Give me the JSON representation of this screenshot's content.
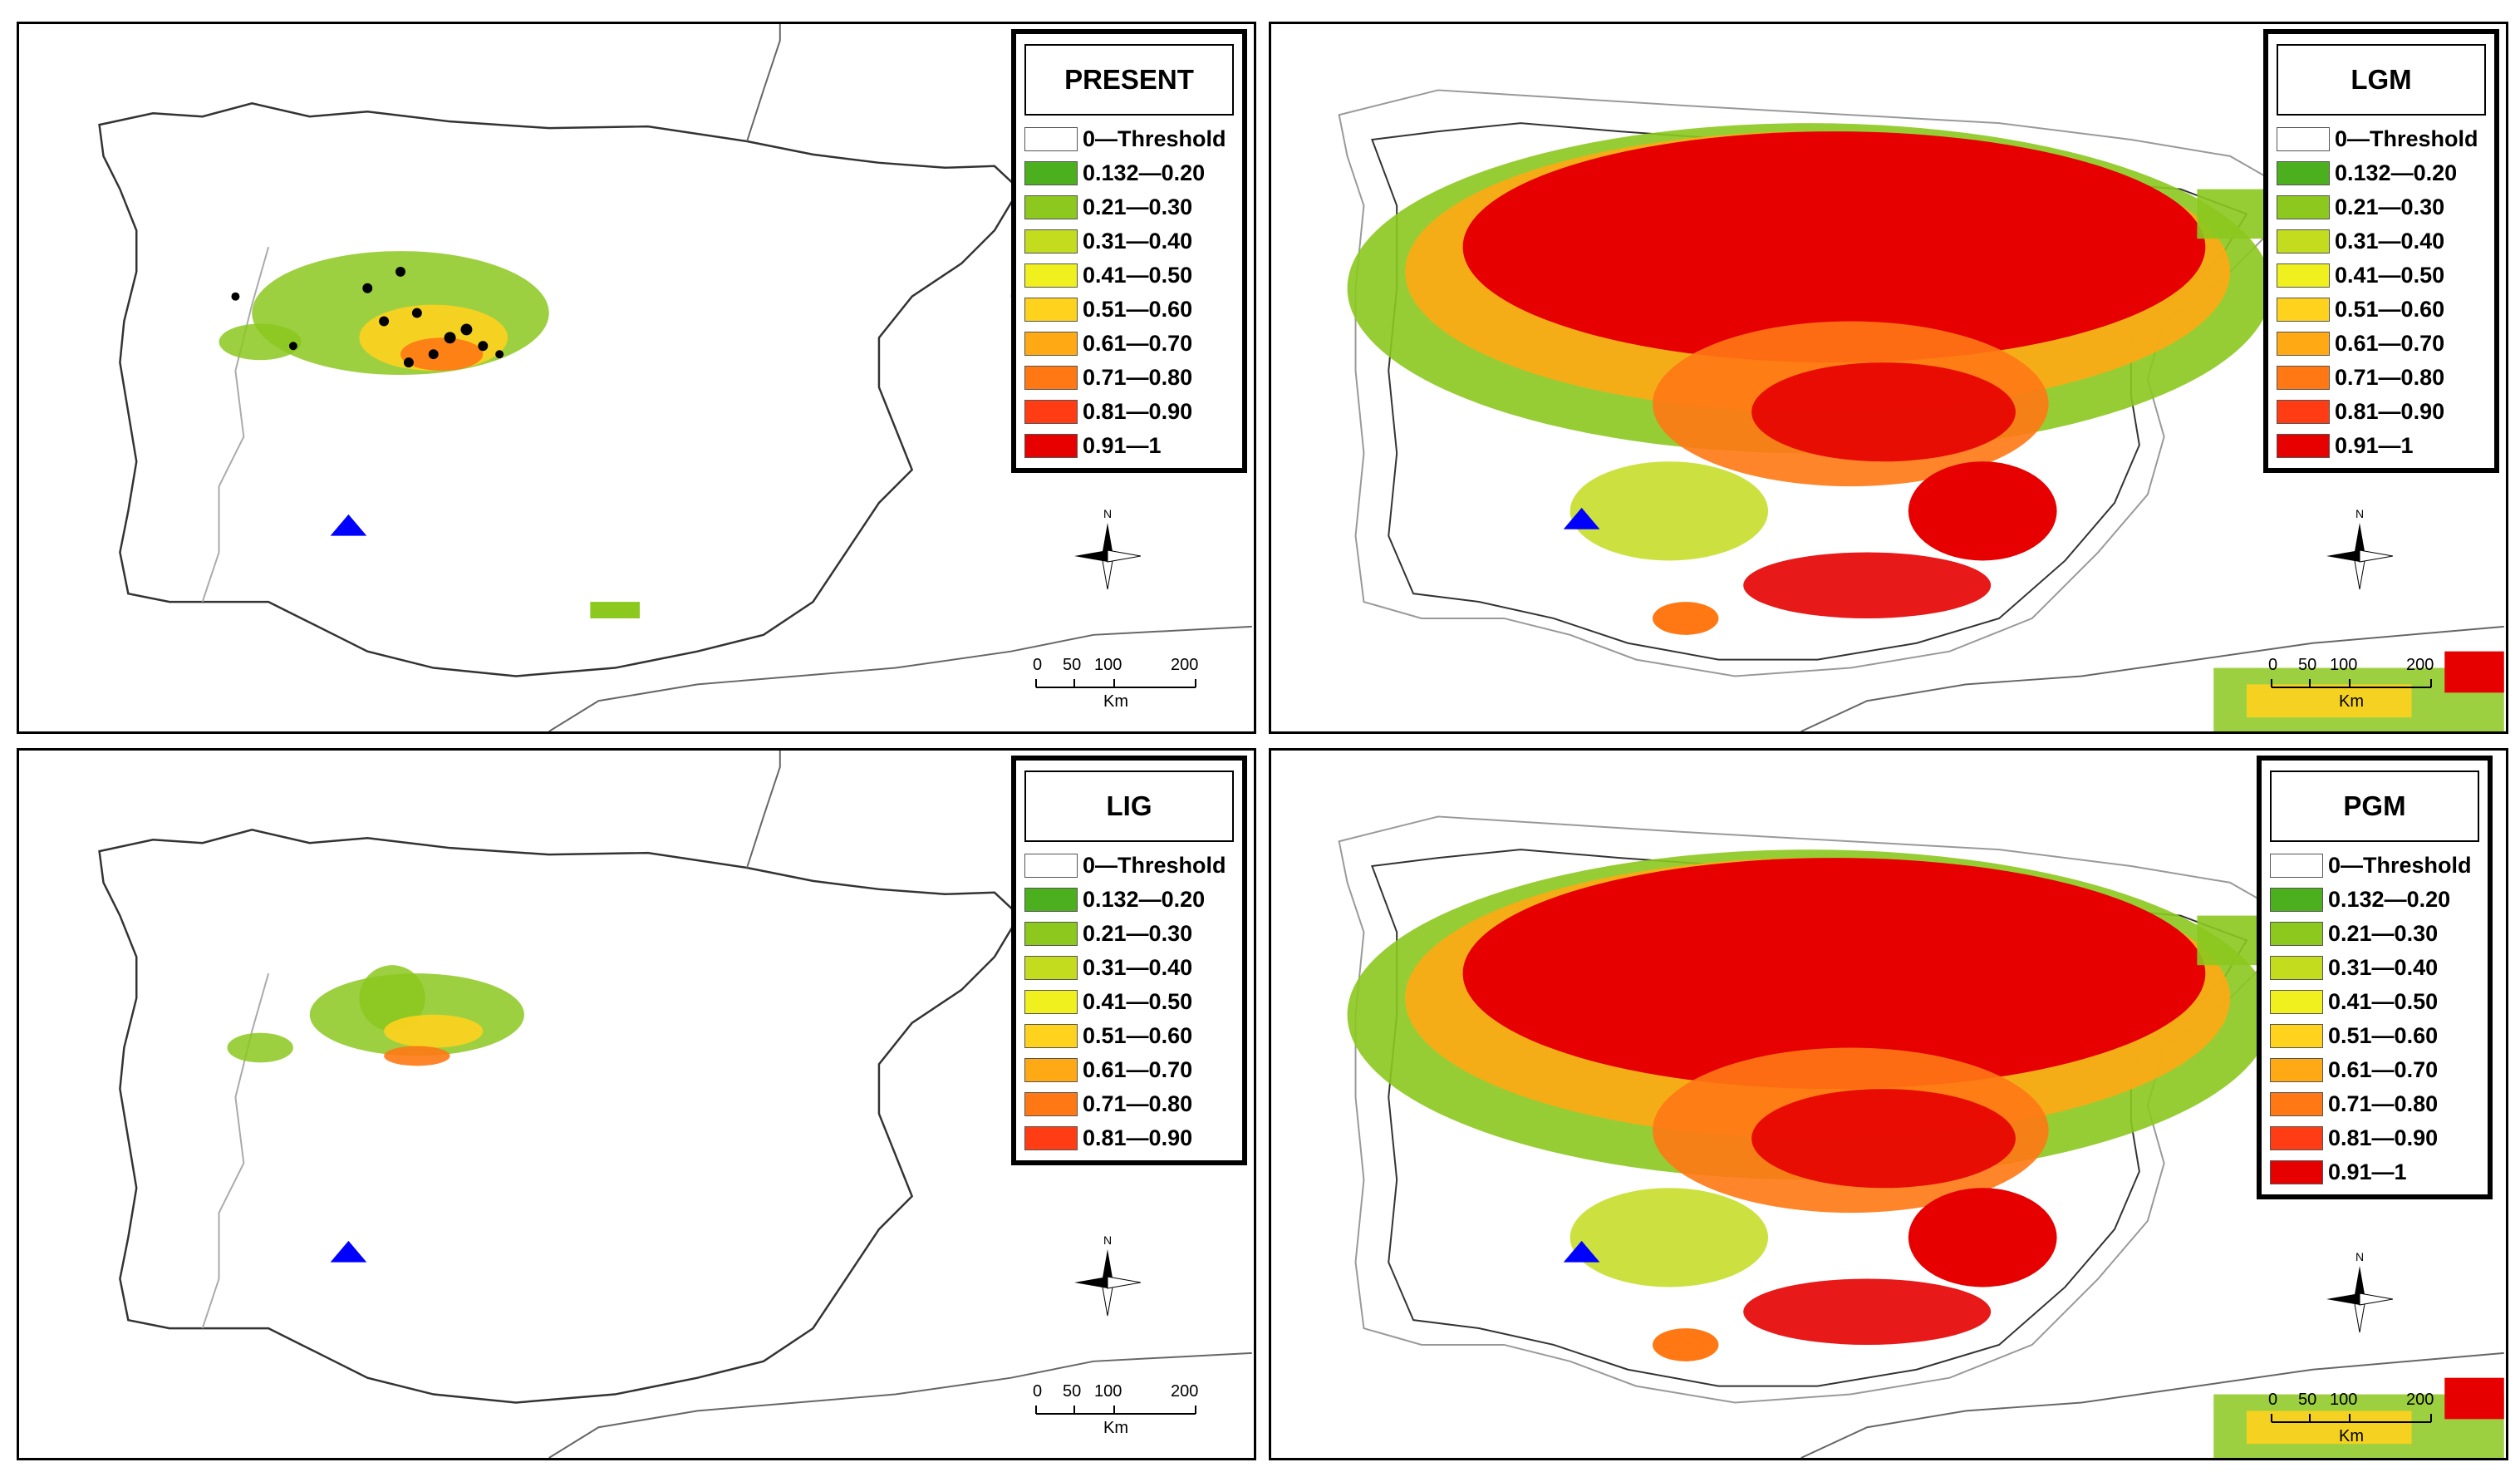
{
  "panels": [
    {
      "id": "present",
      "title": "PRESENT",
      "legend": [
        "0—Threshold",
        "0.132—0.20",
        "0.21—0.30",
        "0.31—0.40",
        "0.41—0.50",
        "0.51—0.60",
        "0.61—0.70",
        "0.71—0.80",
        "0.81—0.90",
        "0.91—1"
      ]
    },
    {
      "id": "lgm",
      "title": "LGM",
      "legend": [
        "0—Threshold",
        "0.132—0.20",
        "0.21—0.30",
        "0.31—0.40",
        "0.41—0.50",
        "0.51—0.60",
        "0.61—0.70",
        "0.71—0.80",
        "0.81—0.90",
        "0.91—1"
      ]
    },
    {
      "id": "lig",
      "title": "LIG",
      "legend": [
        "0—Threshold",
        "0.132—0.20",
        "0.21—0.30",
        "0.31—0.40",
        "0.41—0.50",
        "0.51—0.60",
        "0.61—0.70",
        "0.71—0.80",
        "0.81—0.90"
      ]
    },
    {
      "id": "pgm",
      "title": "PGM",
      "legend": [
        "0—Threshold",
        "0.132—0.20",
        "0.21—0.30",
        "0.31—0.40",
        "0.41—0.50",
        "0.51—0.60",
        "0.61—0.70",
        "0.71—0.80",
        "0.81—0.90",
        "0.91—1"
      ]
    }
  ],
  "legend_colors": [
    "#ffffff",
    "#4caf1e",
    "#8cc81e",
    "#c3dc1e",
    "#f0f01e",
    "#ffd21e",
    "#ffaa14",
    "#ff7814",
    "#ff3c14",
    "#e60000"
  ],
  "marker_color": "#0000ff",
  "compass_label": "N",
  "scale": {
    "ticks": [
      "0",
      "50",
      "100",
      "200"
    ],
    "unit": "Km"
  }
}
